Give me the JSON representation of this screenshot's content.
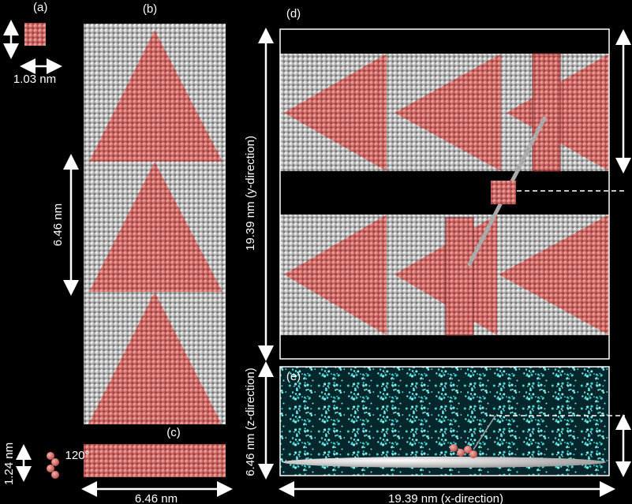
{
  "panel_a": {
    "label": "(a)",
    "size": "1.03 nm"
  },
  "panel_b": {
    "label": "(b)",
    "period": "6.46 nm"
  },
  "panel_c": {
    "label": "(c)",
    "angle": "120°",
    "thickness": "1.24 nm",
    "width": "6.46 nm"
  },
  "panel_d": {
    "label": "(d)",
    "height": "19.39 nm (y-direction)"
  },
  "panel_e": {
    "label": "(e)",
    "height": "6.46 nm (z-direction)",
    "width": "19.39 nm (x-direction)"
  }
}
